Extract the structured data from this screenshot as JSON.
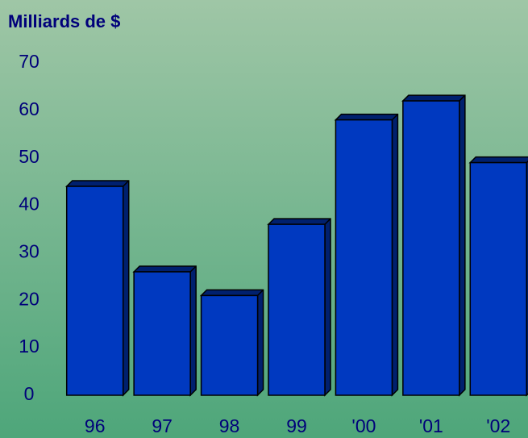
{
  "chart_data": {
    "type": "bar",
    "title": "Milliards de $",
    "categories": [
      "96",
      "97",
      "98",
      "99",
      "'00",
      "'01",
      "'02"
    ],
    "values": [
      44,
      26,
      21,
      36,
      58,
      62,
      49
    ],
    "color": "#0039c0",
    "ylim": [
      0,
      70
    ],
    "yticks": [
      0,
      10,
      20,
      30,
      40,
      50,
      60,
      70
    ],
    "grid": false
  }
}
